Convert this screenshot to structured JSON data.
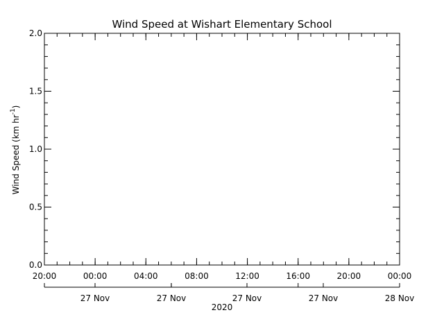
{
  "chart_data": {
    "type": "line",
    "title": "Wind Speed at Wishart Elementary School",
    "ylabel": "Wind Speed (km hr",
    "ylabel_sup": "-1",
    "ylabel_close": ")",
    "ylim": [
      0.0,
      2.0
    ],
    "y_ticks": [
      {
        "value": 0.0,
        "label": "0.0"
      },
      {
        "value": 0.5,
        "label": "0.5"
      },
      {
        "value": 1.0,
        "label": "1.0"
      },
      {
        "value": 1.5,
        "label": "1.5"
      },
      {
        "value": 2.0,
        "label": "2.0"
      }
    ],
    "y_minor_step": 0.1,
    "xlim": [
      "2020-11-26T20:00",
      "2020-11-28T00:00"
    ],
    "x_ticks": [
      {
        "value": "2020-11-26T20:00",
        "label": "20:00"
      },
      {
        "value": "2020-11-27T00:00",
        "label": "00:00"
      },
      {
        "value": "2020-11-27T04:00",
        "label": "04:00"
      },
      {
        "value": "2020-11-27T08:00",
        "label": "08:00"
      },
      {
        "value": "2020-11-27T12:00",
        "label": "12:00"
      },
      {
        "value": "2020-11-27T16:00",
        "label": "16:00"
      },
      {
        "value": "2020-11-27T20:00",
        "label": "20:00"
      },
      {
        "value": "2020-11-28T00:00",
        "label": "00:00"
      }
    ],
    "date_axis": {
      "ticks": [
        {
          "value": "2020-11-26T20:00",
          "label": ""
        },
        {
          "value": "2020-11-27T06:00",
          "label": "27 Nov"
        },
        {
          "value": "2020-11-27T16:00",
          "label": "27 Nov"
        },
        {
          "value": "2020-11-28T02:00",
          "label": "27 Nov"
        },
        {
          "value": "2020-11-28T12:00",
          "label": "27 Nov"
        },
        {
          "value": "2020-11-28T22:00",
          "label": "28 Nov"
        }
      ],
      "year_label": "2020"
    },
    "series": [
      {
        "values": []
      }
    ],
    "grid": false
  }
}
